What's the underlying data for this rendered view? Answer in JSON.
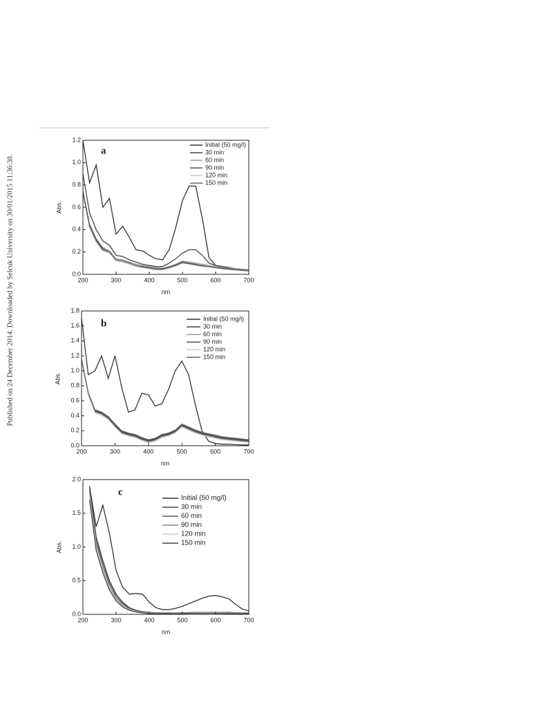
{
  "margin_note": "Published on 24 December 2014. Downloaded by Selcuk University on 30/01/2015 11:36:38.",
  "chart_data": [
    {
      "type": "line",
      "label": "a",
      "xlabel": "nm",
      "ylabel": "Abs.",
      "x": [
        200,
        220,
        240,
        260,
        280,
        300,
        320,
        340,
        360,
        380,
        400,
        420,
        440,
        460,
        480,
        500,
        520,
        540,
        560,
        580,
        600,
        620,
        640,
        660,
        680,
        700
      ],
      "xlim": [
        200,
        700
      ],
      "xticks": [
        200,
        300,
        400,
        500,
        600,
        700
      ],
      "ylim": [
        0,
        1.2
      ],
      "yticks": [
        {
          "value": 0,
          "label": "0.0"
        },
        0.2,
        0.4,
        0.6,
        0.8,
        {
          "value": 1,
          "label": "1.0"
        },
        {
          "value": 1.2,
          "label": "1.2"
        }
      ],
      "series": [
        {
          "name": "Initial (50 mg/l)",
          "color": "#333333",
          "values": [
            1.2,
            0.82,
            0.98,
            0.6,
            0.68,
            0.36,
            0.43,
            0.33,
            0.22,
            0.21,
            0.17,
            0.14,
            0.13,
            0.22,
            0.42,
            0.66,
            0.79,
            0.79,
            0.5,
            0.15,
            0.08,
            0.07,
            0.06,
            0.05,
            0.045,
            0.04
          ]
        },
        {
          "name": "30 min",
          "color": "#444444",
          "values": [
            0.9,
            0.55,
            0.4,
            0.3,
            0.26,
            0.17,
            0.16,
            0.13,
            0.11,
            0.09,
            0.08,
            0.07,
            0.07,
            0.1,
            0.14,
            0.19,
            0.22,
            0.22,
            0.17,
            0.1,
            0.08,
            0.07,
            0.06,
            0.05,
            0.045,
            0.04
          ]
        },
        {
          "name": "60 min",
          "color": "#999999",
          "values": [
            0.75,
            0.45,
            0.32,
            0.24,
            0.21,
            0.14,
            0.13,
            0.11,
            0.09,
            0.08,
            0.07,
            0.06,
            0.055,
            0.07,
            0.09,
            0.12,
            0.11,
            0.1,
            0.09,
            0.08,
            0.07,
            0.06,
            0.055,
            0.05,
            0.045,
            0.04
          ]
        },
        {
          "name": "90 min",
          "color": "#555555",
          "values": [
            0.74,
            0.44,
            0.31,
            0.23,
            0.2,
            0.13,
            0.12,
            0.1,
            0.08,
            0.07,
            0.06,
            0.05,
            0.05,
            0.065,
            0.085,
            0.11,
            0.1,
            0.09,
            0.08,
            0.07,
            0.06,
            0.055,
            0.05,
            0.045,
            0.04,
            0.035
          ]
        },
        {
          "name": "120 min",
          "color": "#cccccc",
          "values": [
            0.72,
            0.42,
            0.29,
            0.21,
            0.19,
            0.12,
            0.11,
            0.09,
            0.07,
            0.06,
            0.05,
            0.04,
            0.04,
            0.055,
            0.075,
            0.1,
            0.09,
            0.08,
            0.07,
            0.065,
            0.055,
            0.05,
            0.045,
            0.04,
            0.035,
            0.03
          ]
        },
        {
          "name": "150 min",
          "color": "#666666",
          "values": [
            0.73,
            0.43,
            0.3,
            0.22,
            0.2,
            0.13,
            0.12,
            0.1,
            0.08,
            0.065,
            0.055,
            0.045,
            0.045,
            0.06,
            0.08,
            0.105,
            0.095,
            0.085,
            0.075,
            0.07,
            0.06,
            0.05,
            0.045,
            0.04,
            0.035,
            0.03
          ]
        }
      ]
    },
    {
      "type": "line",
      "label": "b",
      "xlabel": "nm",
      "ylabel": "Abs.",
      "x": [
        200,
        220,
        240,
        260,
        280,
        300,
        320,
        340,
        360,
        380,
        400,
        420,
        440,
        460,
        480,
        500,
        520,
        540,
        560,
        580,
        600,
        620,
        640,
        660,
        680,
        700
      ],
      "xlim": [
        200,
        700
      ],
      "xticks": [
        200,
        300,
        400,
        500,
        600,
        700
      ],
      "ylim": [
        0,
        1.8
      ],
      "yticks": [
        {
          "value": 0,
          "label": "0.0"
        },
        0.2,
        0.4,
        0.6,
        0.8,
        {
          "value": 1,
          "label": "1.0"
        },
        1.2,
        1.4,
        1.6,
        1.8
      ],
      "series": [
        {
          "name": "Initial (50 mg/l)",
          "color": "#333333",
          "values": [
            1.7,
            0.95,
            1.0,
            1.2,
            0.9,
            1.2,
            0.78,
            0.45,
            0.48,
            0.7,
            0.68,
            0.53,
            0.56,
            0.75,
            1.0,
            1.13,
            0.95,
            0.55,
            0.2,
            0.06,
            0.03,
            0.02,
            0.02,
            0.015,
            0.01,
            0.01
          ]
        },
        {
          "name": "30 min",
          "color": "#444444",
          "values": [
            1.15,
            0.7,
            0.47,
            0.44,
            0.38,
            0.28,
            0.19,
            0.16,
            0.14,
            0.1,
            0.07,
            0.09,
            0.14,
            0.16,
            0.2,
            0.28,
            0.24,
            0.2,
            0.17,
            0.15,
            0.13,
            0.11,
            0.1,
            0.09,
            0.08,
            0.07
          ]
        },
        {
          "name": "60 min",
          "color": "#999999",
          "values": [
            1.13,
            0.68,
            0.45,
            0.42,
            0.36,
            0.26,
            0.17,
            0.14,
            0.12,
            0.08,
            0.05,
            0.07,
            0.12,
            0.14,
            0.18,
            0.26,
            0.22,
            0.18,
            0.15,
            0.13,
            0.11,
            0.09,
            0.08,
            0.07,
            0.06,
            0.05
          ]
        },
        {
          "name": "90 min",
          "color": "#555555",
          "values": [
            1.14,
            0.69,
            0.46,
            0.43,
            0.37,
            0.27,
            0.18,
            0.15,
            0.13,
            0.09,
            0.06,
            0.08,
            0.13,
            0.15,
            0.19,
            0.27,
            0.23,
            0.19,
            0.16,
            0.14,
            0.12,
            0.1,
            0.09,
            0.08,
            0.07,
            0.06
          ]
        },
        {
          "name": "120 min",
          "color": "#cccccc",
          "values": [
            1.12,
            0.67,
            0.44,
            0.41,
            0.35,
            0.25,
            0.16,
            0.13,
            0.11,
            0.07,
            0.04,
            0.06,
            0.11,
            0.13,
            0.17,
            0.25,
            0.21,
            0.17,
            0.14,
            0.12,
            0.1,
            0.08,
            0.07,
            0.06,
            0.05,
            0.045
          ]
        },
        {
          "name": "150 min",
          "color": "#666666",
          "values": [
            1.16,
            0.71,
            0.48,
            0.45,
            0.39,
            0.29,
            0.2,
            0.17,
            0.15,
            0.11,
            0.08,
            0.1,
            0.15,
            0.17,
            0.21,
            0.29,
            0.25,
            0.21,
            0.18,
            0.16,
            0.14,
            0.12,
            0.11,
            0.1,
            0.09,
            0.08
          ]
        }
      ]
    },
    {
      "type": "line",
      "label": "c",
      "xlabel": "nm",
      "ylabel": "Abs.",
      "x": [
        200,
        220,
        240,
        260,
        280,
        300,
        320,
        340,
        360,
        380,
        400,
        420,
        440,
        460,
        480,
        500,
        520,
        540,
        560,
        580,
        600,
        620,
        640,
        660,
        680,
        700
      ],
      "xlim": [
        200,
        700
      ],
      "xticks": [
        200,
        300,
        400,
        500,
        600,
        700
      ],
      "ylim": [
        0,
        2
      ],
      "yticks": [
        {
          "value": 0,
          "label": "0.0"
        },
        0.5,
        {
          "value": 1,
          "label": "1.0"
        },
        1.5,
        {
          "value": 2,
          "label": "2.0"
        }
      ],
      "series": [
        {
          "name": "Initial (50 mg/l)",
          "color": "#333333",
          "values": [
            null,
            1.9,
            1.3,
            1.62,
            1.2,
            0.65,
            0.4,
            0.3,
            0.31,
            0.3,
            0.18,
            0.1,
            0.07,
            0.07,
            0.09,
            0.12,
            0.16,
            0.2,
            0.24,
            0.27,
            0.28,
            0.26,
            0.23,
            0.15,
            0.08,
            0.05
          ]
        },
        {
          "name": "30 min",
          "color": "#444444",
          "values": [
            null,
            1.9,
            1.15,
            0.8,
            0.5,
            0.3,
            0.18,
            0.1,
            0.06,
            0.04,
            0.03,
            0.02,
            0.02,
            0.02,
            0.02,
            0.025,
            0.025,
            0.03,
            0.03,
            0.03,
            0.03,
            0.03,
            0.03,
            0.025,
            0.02,
            0.02
          ]
        },
        {
          "name": "60 min",
          "color": "#555555",
          "values": [
            null,
            1.85,
            1.1,
            0.75,
            0.46,
            0.27,
            0.16,
            0.09,
            0.05,
            0.035,
            0.025,
            0.02,
            0.02,
            0.02,
            0.02,
            0.02,
            0.025,
            0.025,
            0.03,
            0.03,
            0.03,
            0.03,
            0.025,
            0.02,
            0.02,
            0.02
          ]
        },
        {
          "name": "90 min",
          "color": "#888888",
          "values": [
            null,
            1.8,
            1.05,
            0.7,
            0.42,
            0.24,
            0.14,
            0.08,
            0.045,
            0.03,
            0.02,
            0.015,
            0.015,
            0.015,
            0.02,
            0.02,
            0.02,
            0.025,
            0.025,
            0.025,
            0.025,
            0.025,
            0.02,
            0.02,
            0.015,
            0.015
          ]
        },
        {
          "name": "120 min",
          "color": "#cccccc",
          "values": [
            null,
            1.75,
            1.0,
            0.66,
            0.39,
            0.22,
            0.12,
            0.07,
            0.04,
            0.025,
            0.015,
            0.01,
            0.01,
            0.01,
            0.015,
            0.015,
            0.015,
            0.02,
            0.02,
            0.02,
            0.02,
            0.02,
            0.015,
            0.015,
            0.01,
            0.01
          ]
        },
        {
          "name": "150 min",
          "color": "#444444",
          "values": [
            null,
            1.7,
            0.95,
            0.62,
            0.36,
            0.2,
            0.11,
            0.06,
            0.035,
            0.02,
            0.01,
            0.01,
            0.01,
            0.01,
            0.01,
            0.01,
            0.015,
            0.015,
            0.015,
            0.015,
            0.015,
            0.015,
            0.01,
            0.01,
            0.01,
            0.01
          ]
        }
      ]
    }
  ]
}
